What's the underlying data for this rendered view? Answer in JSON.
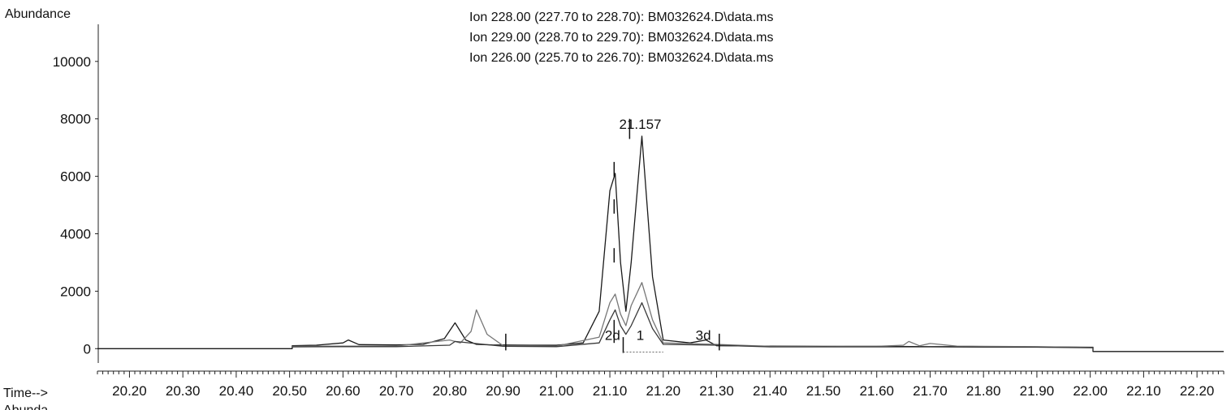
{
  "chart_data": {
    "type": "line",
    "ylabel": "Abundance",
    "xlabel": "Time-->",
    "bottom_cut_label": "Abunda",
    "legend": [
      "Ion 228.00 (227.70 to 228.70): BM032624.D\\data.ms",
      "Ion 229.00 (228.70 to 229.70): BM032624.D\\data.ms",
      "Ion 226.00 (225.70 to 226.70): BM032624.D\\data.ms"
    ],
    "xlim": [
      20.14,
      22.25
    ],
    "ylim": [
      -500,
      11800
    ],
    "x_ticks": [
      20.2,
      20.3,
      20.4,
      20.5,
      20.6,
      20.7,
      20.8,
      20.9,
      21.0,
      21.1,
      21.2,
      21.3,
      21.4,
      21.5,
      21.6,
      21.7,
      21.8,
      21.9,
      22.0,
      22.1,
      22.2
    ],
    "x_tick_labels": [
      "20.20",
      "20.30",
      "20.40",
      "20.50",
      "20.60",
      "20.70",
      "20.80",
      "20.90",
      "21.00",
      "21.10",
      "21.20",
      "21.30",
      "21.40",
      "21.50",
      "21.60",
      "21.70",
      "21.80",
      "21.90",
      "22.00",
      "22.10",
      "22.20"
    ],
    "y_ticks": [
      0,
      2000,
      4000,
      6000,
      8000,
      10000
    ],
    "y_tick_labels": [
      "0",
      "2000",
      "4000",
      "6000",
      "8000",
      "10000"
    ],
    "grid": false,
    "legend_position": "top-center",
    "series": [
      {
        "color": "#1a1a1a",
        "x": [
          20.14,
          20.505,
          20.505,
          20.55,
          20.6,
          20.61,
          20.63,
          20.7,
          20.75,
          20.79,
          20.81,
          20.83,
          20.85,
          20.88,
          20.95,
          21.0,
          21.05,
          21.08,
          21.1,
          21.11,
          21.12,
          21.13,
          21.14,
          21.16,
          21.18,
          21.2,
          21.25,
          21.28,
          21.3,
          21.4,
          21.5,
          21.6,
          21.7,
          21.8,
          21.9,
          22.0,
          22.005,
          22.005,
          22.25
        ],
        "y": [
          0,
          0,
          100,
          120,
          200,
          300,
          140,
          130,
          150,
          350,
          900,
          300,
          150,
          130,
          120,
          120,
          200,
          1300,
          5500,
          6100,
          3000,
          1300,
          3000,
          7400,
          2500,
          300,
          200,
          300,
          100,
          90,
          80,
          80,
          70,
          70,
          60,
          50,
          50,
          -100,
          -100
        ]
      },
      {
        "color": "#777777",
        "x": [
          20.505,
          20.6,
          20.7,
          20.8,
          20.82,
          20.84,
          20.85,
          20.87,
          20.9,
          21.0,
          21.08,
          21.1,
          21.11,
          21.12,
          21.13,
          21.14,
          21.16,
          21.18,
          21.2,
          21.3,
          21.4,
          21.5,
          21.6,
          21.65,
          21.66,
          21.68,
          21.7,
          21.75,
          21.8,
          21.9,
          22.005
        ],
        "y": [
          80,
          90,
          90,
          300,
          200,
          600,
          1350,
          500,
          100,
          90,
          400,
          1600,
          1900,
          1200,
          800,
          1500,
          2300,
          1000,
          200,
          150,
          80,
          70,
          80,
          120,
          250,
          100,
          180,
          90,
          80,
          70,
          40
        ]
      },
      {
        "color": "#3a3a3a",
        "x": [
          20.505,
          20.6,
          20.7,
          20.8,
          20.81,
          20.9,
          21.0,
          21.08,
          21.1,
          21.11,
          21.12,
          21.13,
          21.14,
          21.16,
          21.18,
          21.2,
          21.3,
          21.4,
          21.5,
          21.6,
          21.7,
          21.8,
          21.9,
          22.005
        ],
        "y": [
          60,
          70,
          70,
          120,
          250,
          80,
          70,
          200,
          1000,
          1350,
          800,
          500,
          800,
          1600,
          700,
          150,
          120,
          60,
          60,
          60,
          60,
          50,
          50,
          30
        ]
      }
    ],
    "peak_labels": [
      {
        "text": "21.157",
        "x": 21.157,
        "y": 7650
      },
      {
        "text": "2d",
        "x": 21.105,
        "y": 300
      },
      {
        "text": "1",
        "x": 21.157,
        "y": 300
      },
      {
        "text": "3d",
        "x": 21.275,
        "y": 300
      }
    ],
    "integration_markers": [
      {
        "x": 20.905,
        "y_low": -60,
        "y_high": 520
      },
      {
        "x": 21.108,
        "y_low": 6000,
        "y_high": 6500
      },
      {
        "x": 21.108,
        "y_low": 4700,
        "y_high": 5200
      },
      {
        "x": 21.108,
        "y_low": 3000,
        "y_high": 3500
      },
      {
        "x": 21.108,
        "y_low": 200,
        "y_high": 1000
      },
      {
        "x": 21.125,
        "y_low": -150,
        "y_high": 400
      },
      {
        "x": 21.137,
        "y_low": 7300,
        "y_high": 8000
      },
      {
        "x": 21.305,
        "y_low": -60,
        "y_high": 520
      }
    ]
  }
}
